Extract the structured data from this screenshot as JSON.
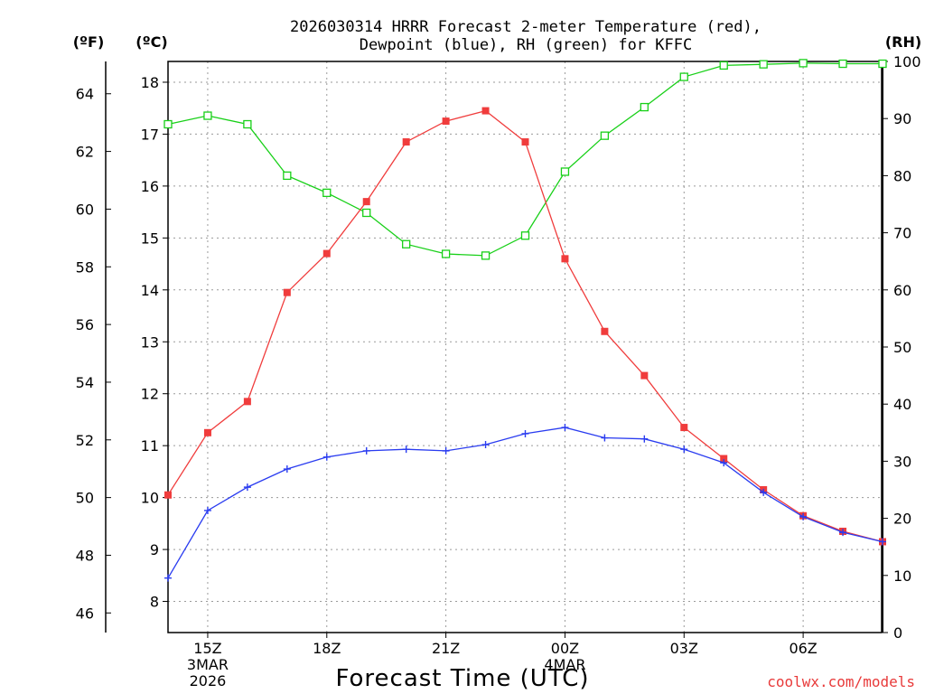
{
  "chart_data": {
    "type": "line",
    "title_lines": [
      "2026030314 HRRR Forecast 2-meter Temperature (red),",
      "Dewpoint (blue), RH (green) for KFFC"
    ],
    "xlabel": "Forecast Time (UTC)",
    "credit": "coolwx.com/models",
    "left_outer_unit": "(ºF)",
    "left_inner_unit": "(ºC)",
    "right_unit": "(RH)",
    "x_hours": [
      0,
      1,
      2,
      3,
      4,
      5,
      6,
      7,
      8,
      9,
      10,
      11,
      12,
      13,
      14,
      15,
      16,
      17,
      18
    ],
    "xlim": [
      0,
      18
    ],
    "x_ticks": [
      {
        "hour": 1,
        "lines": [
          "15Z",
          "3MAR",
          "2026"
        ]
      },
      {
        "hour": 4,
        "lines": [
          "18Z"
        ]
      },
      {
        "hour": 7,
        "lines": [
          "21Z"
        ]
      },
      {
        "hour": 10,
        "lines": [
          "00Z",
          "4MAR"
        ]
      },
      {
        "hour": 13,
        "lines": [
          "03Z"
        ]
      },
      {
        "hour": 16,
        "lines": [
          "06Z"
        ]
      }
    ],
    "celsius_axis": {
      "range": [
        7.4,
        18.4
      ],
      "ticks": [
        "8",
        "9",
        "10",
        "11",
        "12",
        "13",
        "14",
        "15",
        "16",
        "17",
        "18"
      ]
    },
    "fahrenheit_axis": {
      "ticks": [
        "46",
        "48",
        "50",
        "52",
        "54",
        "56",
        "58",
        "60",
        "62",
        "64"
      ]
    },
    "rh_axis": {
      "range": [
        0,
        100
      ],
      "ticks": [
        "0",
        "10",
        "20",
        "30",
        "40",
        "50",
        "60",
        "70",
        "80",
        "90",
        "100"
      ]
    },
    "series": [
      {
        "name": "Temperature",
        "axis": "celsius",
        "color": "#f03c3c",
        "marker": "filled-square",
        "values": [
          10.05,
          11.25,
          11.85,
          13.95,
          14.7,
          15.7,
          16.85,
          17.25,
          17.45,
          16.85,
          14.6,
          13.2,
          12.35,
          11.35,
          10.75,
          10.15,
          9.65,
          9.35,
          9.15
        ]
      },
      {
        "name": "Dewpoint",
        "axis": "celsius",
        "color": "#2a3cf0",
        "marker": "plus",
        "values": [
          8.45,
          9.75,
          10.2,
          10.55,
          10.78,
          10.9,
          10.93,
          10.9,
          11.02,
          11.23,
          11.35,
          11.15,
          11.13,
          10.93,
          10.67,
          10.1,
          9.63,
          9.33,
          9.15
        ]
      },
      {
        "name": "RH",
        "axis": "rh",
        "color": "#18d018",
        "marker": "open-square",
        "values": [
          89,
          90.5,
          89,
          80,
          77,
          73.5,
          68,
          66.3,
          66,
          69.5,
          80.7,
          87,
          92,
          97.3,
          99.3,
          99.5,
          99.7,
          99.6,
          99.6
        ]
      }
    ]
  }
}
